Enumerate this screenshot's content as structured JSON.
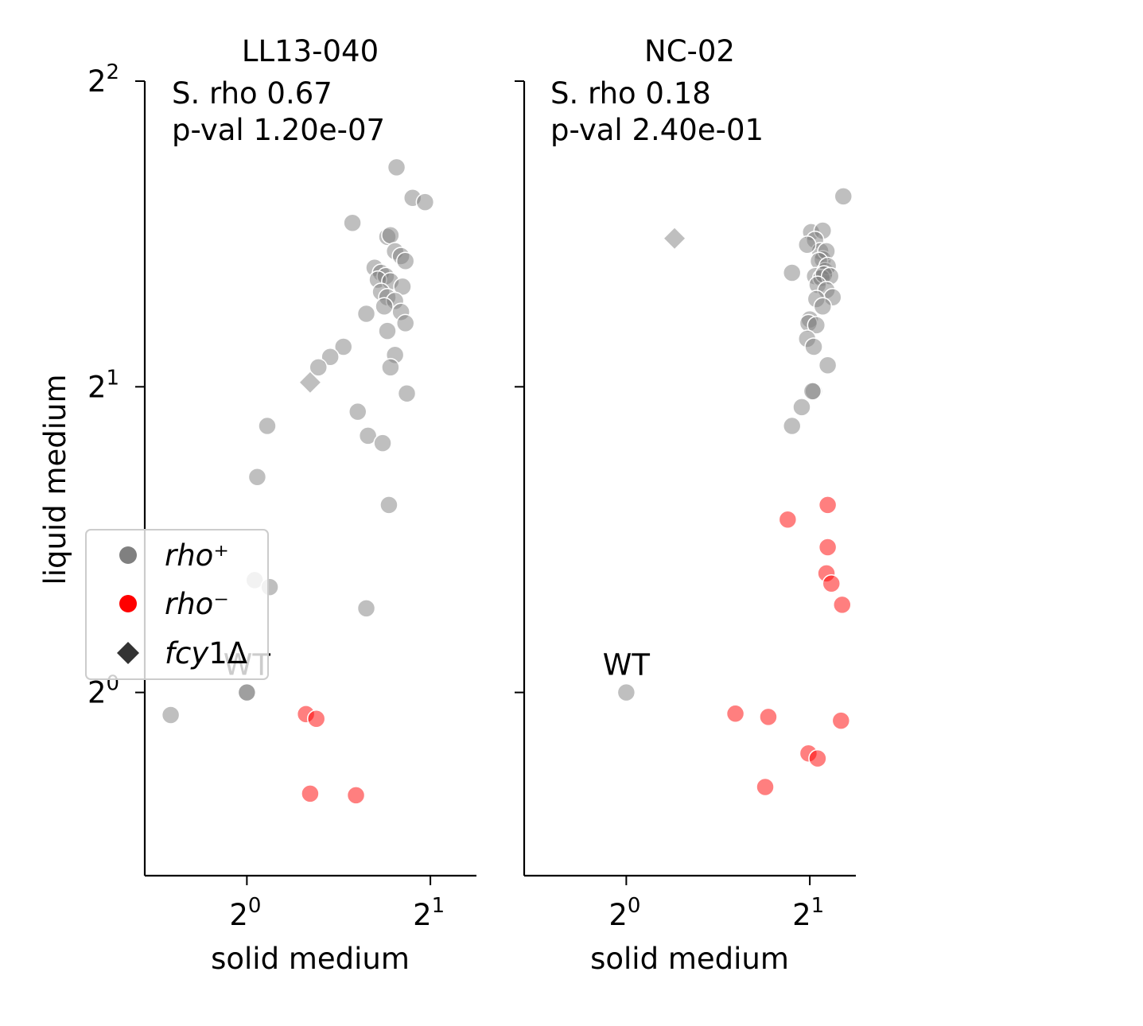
{
  "chart_data": {
    "type": "scatter",
    "ylabel": "liquid medium",
    "xscale": "log2",
    "yscale": "log2",
    "legend": {
      "placement": "center-left",
      "entries": [
        {
          "marker": "circle",
          "color": "#808080",
          "label_italic": "rho",
          "label_suffix": "⁺"
        },
        {
          "marker": "circle",
          "color": "#ff0000",
          "label_italic": "rho",
          "label_suffix": "⁻"
        },
        {
          "marker": "diamond",
          "color": "#333333",
          "label_italic": "fcy",
          "label_suffix": "1Δ"
        }
      ]
    },
    "colors": {
      "rho_plus": "#808080",
      "rho_minus": "#ff0000",
      "fcy1": "#808080"
    },
    "panels": [
      {
        "title": "LL13-040",
        "xlabel": "solid medium",
        "xlim": [
          0.68,
          2.38
        ],
        "ylim": [
          0.66,
          4.0
        ],
        "xticks": [
          {
            "value": 1,
            "base": "2",
            "exp": "0"
          },
          {
            "value": 2,
            "base": "2",
            "exp": "1"
          }
        ],
        "yticks": [
          {
            "value": 1,
            "base": "2",
            "exp": "0"
          },
          {
            "value": 2,
            "base": "2",
            "exp": "1"
          },
          {
            "value": 4,
            "base": "2",
            "exp": "2"
          }
        ],
        "annotation": [
          "S. rho 0.67",
          "p-val 1.20e-07"
        ],
        "wt_label": "WT",
        "wt_point": {
          "x": 1.0,
          "y": 1.0
        },
        "rho_plus": [
          [
            1.76,
            3.29
          ],
          [
            1.87,
            3.07
          ],
          [
            1.96,
            3.04
          ],
          [
            1.49,
            2.9
          ],
          [
            1.7,
            2.81
          ],
          [
            1.72,
            2.82
          ],
          [
            1.75,
            2.72
          ],
          [
            1.79,
            2.69
          ],
          [
            1.82,
            2.66
          ],
          [
            1.62,
            2.62
          ],
          [
            1.66,
            2.59
          ],
          [
            1.69,
            2.57
          ],
          [
            1.64,
            2.55
          ],
          [
            1.72,
            2.54
          ],
          [
            1.8,
            2.51
          ],
          [
            1.66,
            2.48
          ],
          [
            1.7,
            2.45
          ],
          [
            1.75,
            2.43
          ],
          [
            1.68,
            2.4
          ],
          [
            1.79,
            2.37
          ],
          [
            1.57,
            2.36
          ],
          [
            1.82,
            2.31
          ],
          [
            1.7,
            2.27
          ],
          [
            1.44,
            2.19
          ],
          [
            1.37,
            2.14
          ],
          [
            1.31,
            2.09
          ],
          [
            1.75,
            2.15
          ],
          [
            1.72,
            2.09
          ],
          [
            1.83,
            1.97
          ],
          [
            1.52,
            1.89
          ],
          [
            1.58,
            1.79
          ],
          [
            1.67,
            1.76
          ],
          [
            1.08,
            1.83
          ],
          [
            1.04,
            1.63
          ],
          [
            1.71,
            1.53
          ],
          [
            1.03,
            1.29
          ],
          [
            1.09,
            1.27
          ],
          [
            1.57,
            1.21
          ],
          [
            1.0,
            1.0
          ],
          [
            0.75,
            0.95
          ]
        ],
        "rho_minus": [
          [
            1.25,
            0.952
          ],
          [
            1.3,
            0.942
          ],
          [
            1.27,
            0.795
          ],
          [
            1.51,
            0.792
          ]
        ],
        "fcy1": [
          [
            1.27,
            2.02
          ]
        ]
      },
      {
        "title": "NC-02",
        "xlabel": "solid medium",
        "xlim": [
          0.68,
          2.38
        ],
        "ylim": [
          0.66,
          4.0
        ],
        "xticks": [
          {
            "value": 1,
            "base": "2",
            "exp": "0"
          },
          {
            "value": 2,
            "base": "2",
            "exp": "1"
          }
        ],
        "yticks": [
          {
            "value": 1,
            "base": "2",
            "exp": "0"
          },
          {
            "value": 2,
            "base": "2",
            "exp": "1"
          },
          {
            "value": 4,
            "base": "2",
            "exp": "2"
          }
        ],
        "annotation": [
          "S. rho 0.18",
          "p-val 2.40e-01"
        ],
        "wt_label": "WT",
        "wt_point": {
          "x": 1.0,
          "y": 1.0
        },
        "rho_plus": [
          [
            2.27,
            3.08
          ],
          [
            2.01,
            2.84
          ],
          [
            2.1,
            2.85
          ],
          [
            2.04,
            2.79
          ],
          [
            2.08,
            2.72
          ],
          [
            1.98,
            2.76
          ],
          [
            2.1,
            2.67
          ],
          [
            2.13,
            2.72
          ],
          [
            2.07,
            2.66
          ],
          [
            2.12,
            2.6
          ],
          [
            2.14,
            2.63
          ],
          [
            2.04,
            2.57
          ],
          [
            2.09,
            2.56
          ],
          [
            2.11,
            2.58
          ],
          [
            1.87,
            2.59
          ],
          [
            2.16,
            2.57
          ],
          [
            2.06,
            2.52
          ],
          [
            2.13,
            2.49
          ],
          [
            2.18,
            2.45
          ],
          [
            2.05,
            2.44
          ],
          [
            2.1,
            2.4
          ],
          [
            2.0,
            2.33
          ],
          [
            1.99,
            2.31
          ],
          [
            2.05,
            2.3
          ],
          [
            1.98,
            2.23
          ],
          [
            2.03,
            2.19
          ],
          [
            2.14,
            2.1
          ],
          [
            2.03,
            1.98
          ],
          [
            2.02,
            1.98
          ],
          [
            1.94,
            1.91
          ],
          [
            1.87,
            1.83
          ]
        ],
        "rho_minus": [
          [
            2.14,
            1.53
          ],
          [
            1.84,
            1.48
          ],
          [
            2.14,
            1.39
          ],
          [
            2.13,
            1.31
          ],
          [
            2.17,
            1.28
          ],
          [
            2.26,
            1.22
          ],
          [
            1.51,
            0.953
          ],
          [
            1.71,
            0.946
          ],
          [
            2.25,
            0.938
          ],
          [
            1.99,
            0.871
          ],
          [
            2.06,
            0.861
          ],
          [
            1.69,
            0.807
          ]
        ],
        "fcy1": [
          [
            1.2,
            2.8
          ]
        ]
      }
    ]
  }
}
